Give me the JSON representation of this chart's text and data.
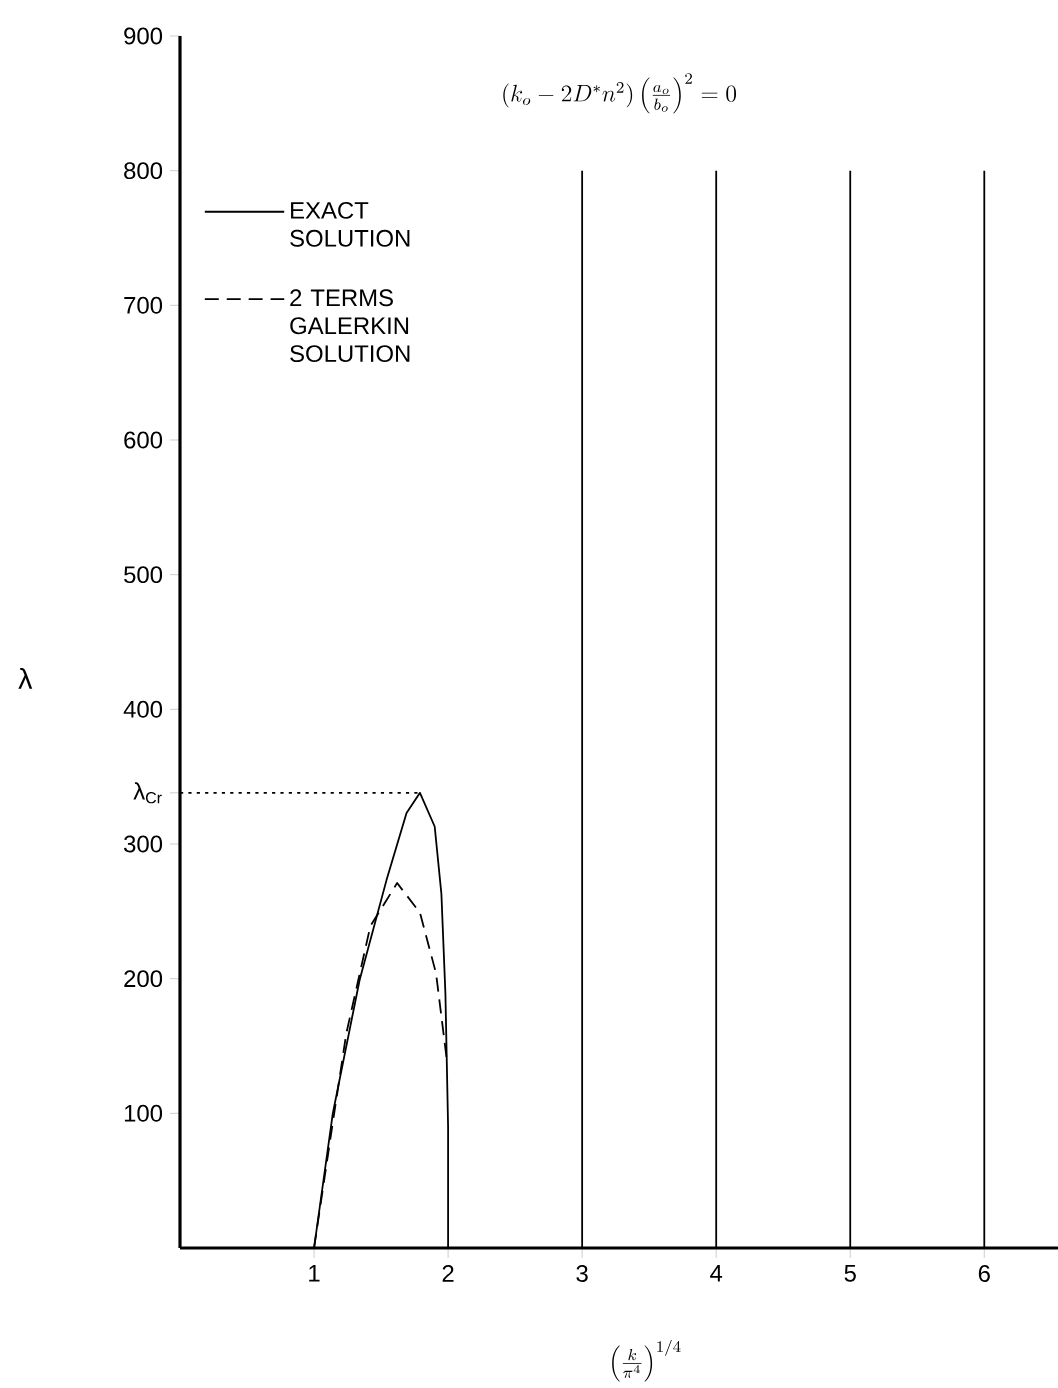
{
  "chart_data": {
    "type": "line",
    "title": "(k_o - 2D^{*}n^{2})\\left(\\frac{a_o}{b_o}\\right)^{2}=0",
    "xlabel": "\\left(\\frac{k}{\\pi^{4}}\\right)^{1/4}",
    "ylabel": "λ",
    "xlim": [
      0,
      6.55
    ],
    "ylim": [
      0,
      900
    ],
    "xticks": [
      1,
      2,
      3,
      4,
      5,
      6
    ],
    "yticks": [
      100,
      200,
      300,
      {
        "value": 338,
        "label": "λ$_{Cr}$"
      },
      400,
      500,
      600,
      700,
      800,
      900
    ],
    "legend": "top left",
    "grid": false,
    "series": [
      {
        "name": "EXACT SOLUTION",
        "color": "#000000",
        "line_style": "solid",
        "x": [
          1,
          1.14,
          1.34,
          1.54,
          1.69,
          1.79,
          1.9,
          1.95,
          1.98,
          2.0,
          2.0
        ],
        "values": [
          0,
          100,
          199,
          273,
          323,
          338,
          313,
          263,
          189,
          90,
          0
        ]
      },
      {
        "color": "#000000",
        "line_style": "solid",
        "x": [
          3,
          3
        ],
        "values": [
          0,
          800
        ]
      },
      {
        "color": "#000000",
        "line_style": "solid",
        "x": [
          4,
          4
        ],
        "values": [
          0,
          800
        ]
      },
      {
        "color": "#000000",
        "line_style": "solid",
        "x": [
          5,
          5
        ],
        "values": [
          0,
          800
        ]
      },
      {
        "color": "#000000",
        "line_style": "solid",
        "x": [
          6,
          6
        ],
        "values": [
          0,
          800
        ]
      },
      {
        "name": "2 TERMS GALERKIN SOLUTION",
        "color": "#000000",
        "line_style": "dashed",
        "x": [
          1,
          1.12,
          1.24,
          1.42,
          1.62,
          1.79,
          1.91,
          1.99
        ],
        "values": [
          0,
          80,
          159,
          239,
          271,
          249,
          204,
          140
        ]
      },
      {
        "color": "#000000",
        "line_style": "dotted",
        "x": [
          0,
          1.79
        ],
        "values": [
          338,
          338
        ]
      }
    ]
  }
}
